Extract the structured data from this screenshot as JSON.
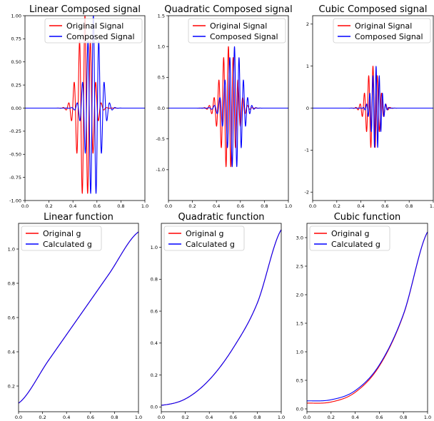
{
  "figure": {
    "background": "#ffffff"
  },
  "colors": {
    "original": "#ff0000",
    "composed": "#0000ff"
  },
  "chart_data": [
    {
      "type": "line",
      "title": "Linear Composed signal",
      "kind": "signal",
      "carrier": 22,
      "center": 0.5,
      "width": 0.08,
      "warp": "linear",
      "xlim": [
        0.0,
        1.0
      ],
      "ylim": [
        -1.0,
        1.0
      ],
      "xticks": [
        "0.0",
        "0.2",
        "0.4",
        "0.6",
        "0.8",
        "1.0"
      ],
      "yticks": [
        "-1.00",
        "-0.75",
        "-0.50",
        "-0.25",
        "0.00",
        "0.25",
        "0.50",
        "0.75",
        "1.00"
      ],
      "grid": false,
      "legend_position": "top-right",
      "series": [
        {
          "name": "Original Signal",
          "color": "#ff0000"
        },
        {
          "name": "Composed Signal",
          "color": "#0000ff"
        }
      ]
    },
    {
      "type": "line",
      "title": "Quadratic Composed signal",
      "kind": "signal",
      "carrier": 25,
      "center": 0.5,
      "width": 0.09,
      "warp": "quadratic",
      "xlim": [
        0.0,
        1.0
      ],
      "ylim": [
        -1.5,
        1.5
      ],
      "xticks": [
        "0.0",
        "0.2",
        "0.4",
        "0.6",
        "0.8",
        "1.0"
      ],
      "yticks": [
        "-1.0",
        "-0.5",
        "0.0",
        "0.5",
        "1.0",
        "1.5"
      ],
      "grid": false,
      "legend_position": "top-right",
      "series": [
        {
          "name": "Original Signal",
          "color": "#ff0000"
        },
        {
          "name": "Composed Signal",
          "color": "#0000ff"
        }
      ]
    },
    {
      "type": "line",
      "title": "Cubic Composed signal",
      "kind": "signal",
      "carrier": 28,
      "center": 0.5,
      "width": 0.07,
      "warp": "cubic",
      "xlim": [
        0.0,
        1.0
      ],
      "ylim": [
        -2.2,
        2.2
      ],
      "xticks": [
        "0.0",
        "0.2",
        "0.4",
        "0.6",
        "0.8",
        "1.0"
      ],
      "yticks": [
        "-2",
        "-1",
        "0",
        "1",
        "2"
      ],
      "grid": false,
      "legend_position": "top-right",
      "series": [
        {
          "name": "Original Signal",
          "color": "#ff0000"
        },
        {
          "name": "Composed Signal",
          "color": "#0000ff"
        }
      ]
    },
    {
      "type": "line",
      "title": "Linear function",
      "kind": "function",
      "xlim": [
        0.0,
        1.0
      ],
      "ylim": [
        0.05,
        1.15
      ],
      "xticks": [
        "0.0",
        "0.2",
        "0.4",
        "0.6",
        "0.8",
        "1.0"
      ],
      "yticks": [
        "0.2",
        "0.4",
        "0.6",
        "0.8",
        "1.0"
      ],
      "grid": false,
      "legend_position": "top-left",
      "series": [
        {
          "name": "Original g",
          "color": "#ff0000",
          "x": [
            0.0,
            0.25,
            0.5,
            0.75,
            1.0
          ],
          "y": [
            0.1,
            0.35,
            0.6,
            0.85,
            1.1
          ]
        },
        {
          "name": "Calculated g",
          "color": "#0000ff",
          "x": [
            0.0,
            0.25,
            0.5,
            0.75,
            1.0
          ],
          "y": [
            0.1,
            0.35,
            0.6,
            0.85,
            1.1
          ]
        }
      ]
    },
    {
      "type": "line",
      "title": "Quadratic function",
      "kind": "function",
      "xlim": [
        0.0,
        1.0
      ],
      "ylim": [
        -0.03,
        1.15
      ],
      "xticks": [
        "0.0",
        "0.2",
        "0.4",
        "0.6",
        "0.8",
        "1.0"
      ],
      "yticks": [
        "0.0",
        "0.2",
        "0.4",
        "0.6",
        "0.8",
        "1.0"
      ],
      "grid": false,
      "legend_position": "top-left",
      "series": [
        {
          "name": "Original g",
          "color": "#ff0000",
          "x": [
            0.0,
            0.2,
            0.4,
            0.6,
            0.8,
            1.0
          ],
          "y": [
            0.01,
            0.05,
            0.17,
            0.37,
            0.65,
            1.11
          ]
        },
        {
          "name": "Calculated g",
          "color": "#0000ff",
          "x": [
            0.0,
            0.2,
            0.4,
            0.6,
            0.8,
            1.0
          ],
          "y": [
            0.01,
            0.05,
            0.17,
            0.37,
            0.65,
            1.11
          ]
        }
      ]
    },
    {
      "type": "line",
      "title": "Cubic function",
      "kind": "function",
      "xlim": [
        0.0,
        1.0
      ],
      "ylim": [
        -0.05,
        3.25
      ],
      "xticks": [
        "0.0",
        "0.2",
        "0.4",
        "0.6",
        "0.8",
        "1.0"
      ],
      "yticks": [
        "0.0",
        "0.5",
        "1.0",
        "1.5",
        "2.0",
        "2.5",
        "3.0"
      ],
      "grid": false,
      "legend_position": "top-left",
      "series": [
        {
          "name": "Original g",
          "color": "#ff0000",
          "x": [
            0.0,
            0.2,
            0.4,
            0.6,
            0.8,
            1.0
          ],
          "y": [
            0.1,
            0.12,
            0.29,
            0.75,
            1.65,
            3.1
          ]
        },
        {
          "name": "Calculated g",
          "color": "#0000ff",
          "x": [
            0.0,
            0.2,
            0.4,
            0.6,
            0.8,
            1.0
          ],
          "y": [
            0.14,
            0.16,
            0.32,
            0.77,
            1.66,
            3.1
          ]
        }
      ]
    }
  ]
}
